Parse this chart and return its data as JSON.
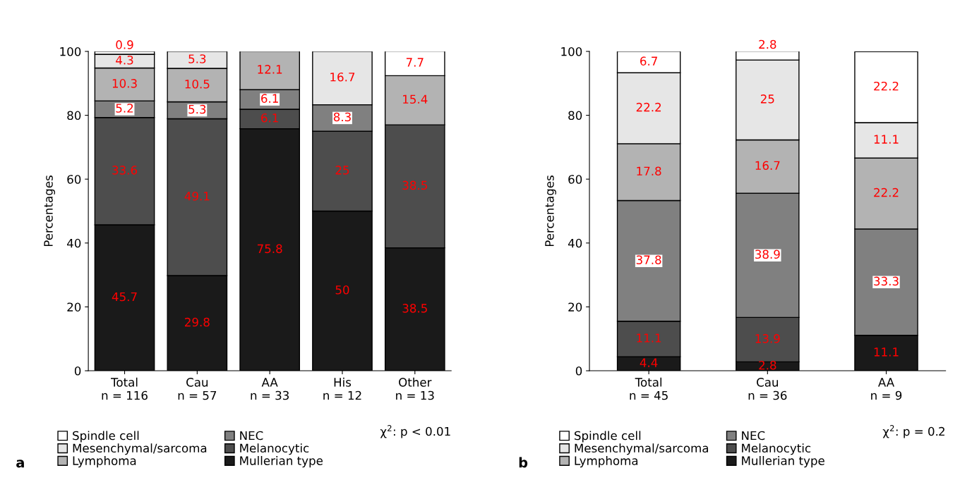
{
  "chart_data": [
    {
      "type": "bar",
      "stacked": true,
      "ylabel": "Percentages",
      "ylim": [
        0,
        100
      ],
      "yticks": [
        0,
        20,
        40,
        60,
        80,
        100
      ],
      "grid": false,
      "legend": "bottom",
      "categories": [
        "Total\nn = 116",
        "Cau\nn = 57",
        "AA\nn = 33",
        "His\nn = 12",
        "Other\nn = 13"
      ],
      "series": [
        {
          "name": "Mullerian type",
          "color": "#1a1a1a",
          "values": [
            45.7,
            29.8,
            75.8,
            50,
            38.5
          ],
          "value_labels": [
            "45.7",
            "29.8",
            "75.8",
            "50",
            "38.5"
          ]
        },
        {
          "name": "Melanocytic",
          "color": "#4d4d4d",
          "values": [
            33.6,
            49.1,
            6.1,
            25,
            38.5
          ],
          "value_labels": [
            "33.6",
            "49.1",
            "6.1",
            "25",
            "38.5"
          ]
        },
        {
          "name": "NEC",
          "color": "#808080",
          "values": [
            5.2,
            5.3,
            6.1,
            8.3,
            null
          ],
          "value_labels": [
            "5.2",
            "5.3",
            "6.1",
            "8.3",
            null
          ]
        },
        {
          "name": "Lymphoma",
          "color": "#b3b3b3",
          "values": [
            10.3,
            10.5,
            12.1,
            null,
            15.4
          ],
          "value_labels": [
            "10.3",
            "10.5",
            "12.1",
            null,
            "15.4"
          ]
        },
        {
          "name": "Mesenchymal/sarcoma",
          "color": "#e6e6e6",
          "values": [
            4.3,
            5.3,
            null,
            16.7,
            null
          ],
          "value_labels": [
            "4.3",
            "5.3",
            null,
            "16.7",
            null
          ]
        },
        {
          "name": "Spindle cell",
          "color": "#ffffff",
          "values": [
            0.9,
            null,
            null,
            null,
            7.7
          ],
          "value_labels": [
            "0.9",
            null,
            null,
            null,
            "7.7"
          ]
        }
      ],
      "annotations": [
        "χ$^{2}$: p < 0.01",
        "a"
      ]
    },
    {
      "type": "bar",
      "stacked": true,
      "ylabel": "Percentages",
      "ylim": [
        0,
        100
      ],
      "yticks": [
        0,
        20,
        40,
        60,
        80,
        100
      ],
      "grid": false,
      "legend": "bottom",
      "categories": [
        "Total\nn = 45",
        "Cau\nn = 36",
        "AA\nn = 9"
      ],
      "series": [
        {
          "name": "Mullerian type",
          "color": "#1a1a1a",
          "values": [
            4.4,
            2.8,
            11.1
          ],
          "value_labels": [
            "4.4",
            "2.8",
            "11.1"
          ]
        },
        {
          "name": "Melanocytic",
          "color": "#4d4d4d",
          "values": [
            11.1,
            13.9,
            null
          ],
          "value_labels": [
            "11.1",
            "13.9",
            null
          ]
        },
        {
          "name": "NEC",
          "color": "#808080",
          "values": [
            37.8,
            38.9,
            33.3
          ],
          "value_labels": [
            "37.8",
            "38.9",
            "33.3"
          ]
        },
        {
          "name": "Lymphoma",
          "color": "#b3b3b3",
          "values": [
            17.8,
            16.7,
            22.2
          ],
          "value_labels": [
            "17.8",
            "16.7",
            "22.2"
          ]
        },
        {
          "name": "Mesenchymal/sarcoma",
          "color": "#e6e6e6",
          "values": [
            22.2,
            25,
            11.1
          ],
          "value_labels": [
            "22.2",
            "25",
            "11.1"
          ]
        },
        {
          "name": "Spindle cell",
          "color": "#ffffff",
          "values": [
            6.7,
            2.8,
            22.2
          ],
          "value_labels": [
            "6.7",
            "2.8",
            "22.2"
          ]
        }
      ],
      "annotations": [
        "χ$^{2}$: p = 0.2",
        "b"
      ]
    }
  ]
}
